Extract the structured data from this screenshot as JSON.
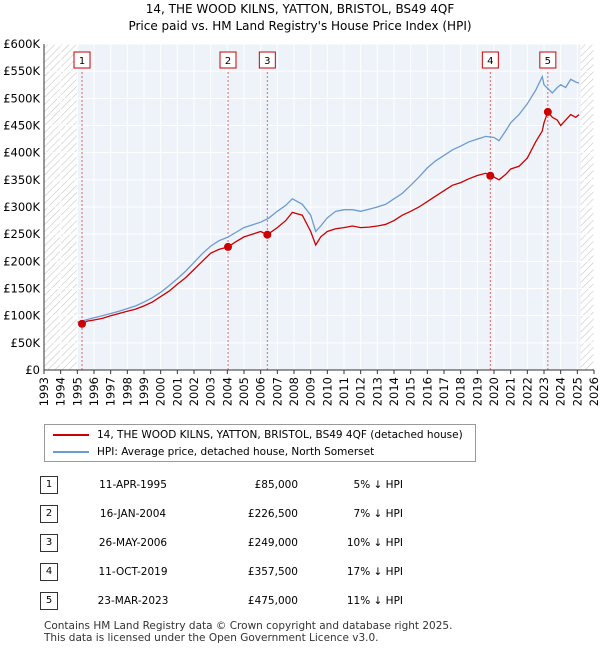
{
  "title_line1": "14, THE WOOD KILNS, YATTON, BRISTOL, BS49 4QF",
  "title_line2": "Price paid vs. HM Land Registry's House Price Index (HPI)",
  "chart_data": {
    "type": "line",
    "xlim": [
      1993,
      2026
    ],
    "ylim": [
      0,
      600000
    ],
    "y_ticks": [
      0,
      50000,
      100000,
      150000,
      200000,
      250000,
      300000,
      350000,
      400000,
      450000,
      500000,
      550000,
      600000
    ],
    "y_tick_labels": [
      "£0",
      "£50K",
      "£100K",
      "£150K",
      "£200K",
      "£250K",
      "£300K",
      "£350K",
      "£400K",
      "£450K",
      "£500K",
      "£550K",
      "£600K"
    ],
    "x_ticks": [
      1993,
      1994,
      1995,
      1996,
      1997,
      1998,
      1999,
      2000,
      2001,
      2002,
      2003,
      2004,
      2005,
      2006,
      2007,
      2008,
      2009,
      2010,
      2011,
      2012,
      2013,
      2014,
      2015,
      2016,
      2017,
      2018,
      2019,
      2020,
      2021,
      2022,
      2023,
      2024,
      2025,
      2026
    ],
    "x_tick_labels": [
      "1993",
      "1994",
      "1995",
      "1996",
      "1997",
      "1998",
      "1999",
      "2000",
      "2001",
      "2002",
      "2003",
      "2004",
      "2005",
      "2006",
      "2007",
      "2008",
      "2009",
      "2010",
      "2011",
      "2012",
      "2013",
      "2014",
      "2015",
      "2016",
      "2017",
      "2018",
      "2019",
      "2020",
      "2021",
      "2022",
      "2023",
      "2024",
      "2025",
      "2026"
    ],
    "hatched_before": 1995.0,
    "hatched_after": 2025.2,
    "series": [
      {
        "name": "14, THE WOOD KILNS, YATTON, BRISTOL, BS49 4QF (detached house)",
        "color": "#cc0000",
        "x": [
          1995.28,
          1995.6,
          1996.0,
          1996.5,
          1997.0,
          1997.5,
          1998.0,
          1998.5,
          1999.0,
          1999.5,
          2000.0,
          2000.5,
          2001.0,
          2001.5,
          2002.0,
          2002.5,
          2003.0,
          2003.5,
          2004.04,
          2004.5,
          2005.0,
          2005.5,
          2006.0,
          2006.4,
          2007.0,
          2007.5,
          2007.9,
          2008.5,
          2009.0,
          2009.3,
          2009.6,
          2010.0,
          2010.5,
          2011.0,
          2011.5,
          2012.0,
          2012.5,
          2013.0,
          2013.5,
          2014.0,
          2014.5,
          2015.0,
          2015.5,
          2016.0,
          2016.5,
          2017.0,
          2017.5,
          2018.0,
          2018.5,
          2019.0,
          2019.5,
          2019.78,
          2020.0,
          2020.3,
          2020.7,
          2021.0,
          2021.5,
          2022.0,
          2022.5,
          2022.9,
          2023.0,
          2023.23,
          2023.5,
          2023.8,
          2024.0,
          2024.3,
          2024.6,
          2024.9,
          2025.1
        ],
        "values": [
          85000,
          90000,
          92000,
          95000,
          100000,
          104000,
          108000,
          112000,
          118000,
          125000,
          135000,
          145000,
          158000,
          170000,
          185000,
          200000,
          215000,
          222000,
          226500,
          236000,
          245000,
          250000,
          255000,
          249000,
          262000,
          275000,
          290000,
          285000,
          255000,
          230000,
          245000,
          255000,
          260000,
          262000,
          265000,
          262000,
          263000,
          265000,
          268000,
          275000,
          285000,
          292000,
          300000,
          310000,
          320000,
          330000,
          340000,
          345000,
          352000,
          358000,
          362000,
          357500,
          355000,
          350000,
          360000,
          370000,
          375000,
          390000,
          420000,
          440000,
          455000,
          475000,
          465000,
          460000,
          450000,
          460000,
          470000,
          465000,
          470000
        ]
      },
      {
        "name": "HPI: Average price, detached house, North Somerset",
        "color": "#6c9bd2",
        "x": [
          1995.0,
          1995.5,
          1996.0,
          1996.5,
          1997.0,
          1997.5,
          1998.0,
          1998.5,
          1999.0,
          1999.5,
          2000.0,
          2000.5,
          2001.0,
          2001.5,
          2002.0,
          2002.5,
          2003.0,
          2003.5,
          2004.0,
          2004.5,
          2005.0,
          2005.5,
          2006.0,
          2006.5,
          2007.0,
          2007.5,
          2007.9,
          2008.5,
          2009.0,
          2009.3,
          2009.6,
          2010.0,
          2010.5,
          2011.0,
          2011.5,
          2012.0,
          2012.5,
          2013.0,
          2013.5,
          2014.0,
          2014.5,
          2015.0,
          2015.5,
          2016.0,
          2016.5,
          2017.0,
          2017.5,
          2018.0,
          2018.5,
          2019.0,
          2019.5,
          2020.0,
          2020.3,
          2020.7,
          2021.0,
          2021.5,
          2022.0,
          2022.5,
          2022.9,
          2023.0,
          2023.5,
          2023.8,
          2024.0,
          2024.3,
          2024.6,
          2024.9,
          2025.1
        ],
        "values": [
          88000,
          92000,
          96000,
          100000,
          104000,
          108000,
          113000,
          118000,
          125000,
          133000,
          143000,
          155000,
          168000,
          182000,
          198000,
          214000,
          228000,
          238000,
          244000,
          253000,
          262000,
          267000,
          272000,
          280000,
          292000,
          303000,
          315000,
          305000,
          285000,
          255000,
          265000,
          280000,
          292000,
          295000,
          295000,
          292000,
          296000,
          300000,
          305000,
          315000,
          325000,
          340000,
          355000,
          372000,
          385000,
          395000,
          405000,
          412000,
          420000,
          425000,
          430000,
          428000,
          422000,
          440000,
          455000,
          470000,
          490000,
          515000,
          540000,
          525000,
          510000,
          520000,
          525000,
          520000,
          535000,
          530000,
          528000
        ]
      }
    ],
    "sales": [
      {
        "n": "1",
        "x": 1995.28,
        "price": 85000
      },
      {
        "n": "2",
        "x": 2004.04,
        "price": 226500
      },
      {
        "n": "3",
        "x": 2006.4,
        "price": 249000
      },
      {
        "n": "4",
        "x": 2019.78,
        "price": 357500
      },
      {
        "n": "5",
        "x": 2023.23,
        "price": 475000
      }
    ]
  },
  "legend": [
    {
      "label": "14, THE WOOD KILNS, YATTON, BRISTOL, BS49 4QF (detached house)",
      "color": "#cc0000"
    },
    {
      "label": "HPI: Average price, detached house, North Somerset",
      "color": "#6c9bd2"
    }
  ],
  "table": [
    {
      "n": "1",
      "date": "11-APR-1995",
      "price": "£85,000",
      "hpi": "5% ↓ HPI"
    },
    {
      "n": "2",
      "date": "16-JAN-2004",
      "price": "£226,500",
      "hpi": "7% ↓ HPI"
    },
    {
      "n": "3",
      "date": "26-MAY-2006",
      "price": "£249,000",
      "hpi": "10% ↓ HPI"
    },
    {
      "n": "4",
      "date": "11-OCT-2019",
      "price": "£357,500",
      "hpi": "17% ↓ HPI"
    },
    {
      "n": "5",
      "date": "23-MAR-2023",
      "price": "£475,000",
      "hpi": "11% ↓ HPI"
    }
  ],
  "footer_line1": "Contains HM Land Registry data © Crown copyright and database right 2025.",
  "footer_line2": "This data is licensed under the Open Government Licence v3.0."
}
